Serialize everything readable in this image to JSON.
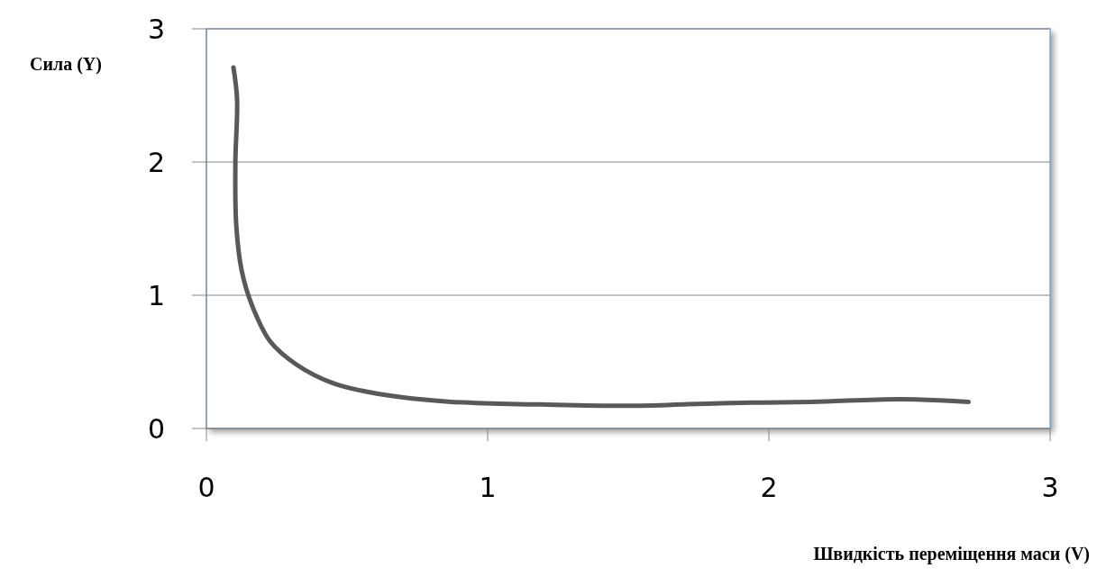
{
  "chart_data": {
    "type": "line",
    "xlabel": "Швидкість переміщення маси (V)",
    "ylabel": "Сила (Y)",
    "x": [
      0.096,
      0.109,
      0.103,
      0.106,
      0.125,
      0.163,
      0.228,
      0.32,
      0.45,
      0.61,
      0.87,
      1.19,
      1.51,
      1.83,
      2.15,
      2.47,
      2.71
    ],
    "series": [
      {
        "color": "#595959",
        "values": [
          2.71,
          2.47,
          2.0,
          1.53,
          1.19,
          0.92,
          0.65,
          0.48,
          0.34,
          0.26,
          0.2,
          0.18,
          0.17,
          0.19,
          0.2,
          0.22,
          0.2
        ]
      }
    ],
    "xlim": [
      0,
      3
    ],
    "ylim": [
      0,
      3
    ],
    "xticks": [
      0,
      1,
      2,
      3
    ],
    "yticks": [
      0,
      1,
      2,
      3
    ],
    "grid": "y",
    "marker": "none",
    "line_style": "solid"
  }
}
